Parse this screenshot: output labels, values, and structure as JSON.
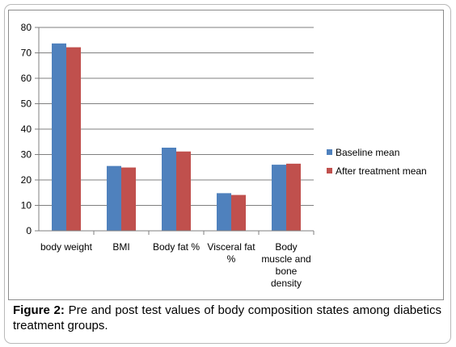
{
  "chart_data": {
    "type": "bar",
    "categories": [
      "body weight",
      "BMI",
      "Body fat %",
      "Visceral fat %",
      "Body muscle and bone density"
    ],
    "category_lines": [
      [
        "body weight"
      ],
      [
        "BMI"
      ],
      [
        "Body fat %"
      ],
      [
        "Visceral fat",
        "%"
      ],
      [
        "Body",
        "muscle and",
        "bone",
        "density"
      ]
    ],
    "series": [
      {
        "name": "Baseline mean",
        "values": [
          73.7,
          25.5,
          32.7,
          14.8,
          26.0
        ],
        "color": "#4f81bd"
      },
      {
        "name": "After treatment mean",
        "values": [
          72.2,
          24.9,
          31.2,
          14.1,
          26.4
        ],
        "color": "#c0504d"
      }
    ],
    "ylim": [
      0,
      80
    ],
    "yticks": [
      "0",
      "10",
      "20",
      "30",
      "40",
      "50",
      "60",
      "70",
      "80"
    ],
    "grid": true,
    "legend_position": "right"
  },
  "caption": {
    "label": "Figure 2:",
    "text": " Pre and post test values of body composition states among diabetics treatment groups."
  }
}
